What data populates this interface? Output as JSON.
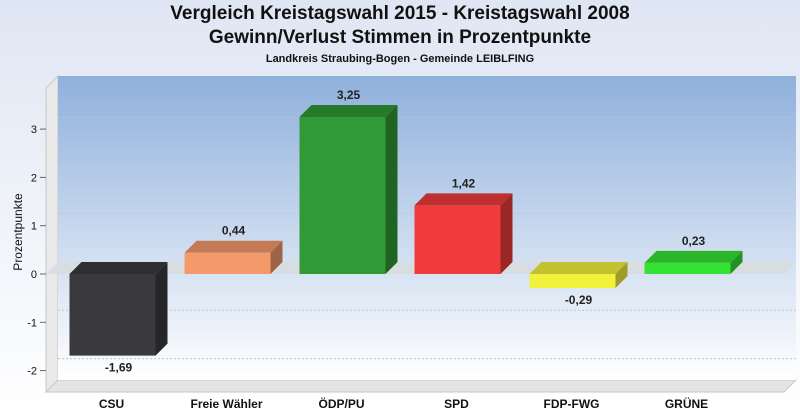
{
  "chart_data": {
    "type": "bar",
    "title": "Vergleich Kreistagswahl 2015 - Kreistagswahl 2008",
    "subtitle": "Gewinn/Verlust Stimmen in Prozentpunkte",
    "caption": "Landkreis Straubing-Bogen - Gemeinde LEIBLFING",
    "ylabel": "Prozentpunkte",
    "xlabel": "",
    "ylim": [
      -2.3,
      3.9
    ],
    "yticks": [
      "-2",
      "-1",
      "0",
      "1",
      "2",
      "3"
    ],
    "categories": [
      "CSU",
      "Freie Wähler",
      "ÖDP/PU",
      "SPD",
      "FDP-FWG",
      "GRÜNE"
    ],
    "values": [
      -1.69,
      0.44,
      3.25,
      1.42,
      -0.29,
      0.23
    ],
    "value_labels": [
      "-1,69",
      "0,44",
      "3,25",
      "1,42",
      "-0,29",
      "0,23"
    ],
    "colors": [
      "#3a3a3e",
      "#f4996a",
      "#2f9a36",
      "#ef3b3b",
      "#f2f23c",
      "#34e234"
    ],
    "grid": true,
    "legend": "none"
  }
}
